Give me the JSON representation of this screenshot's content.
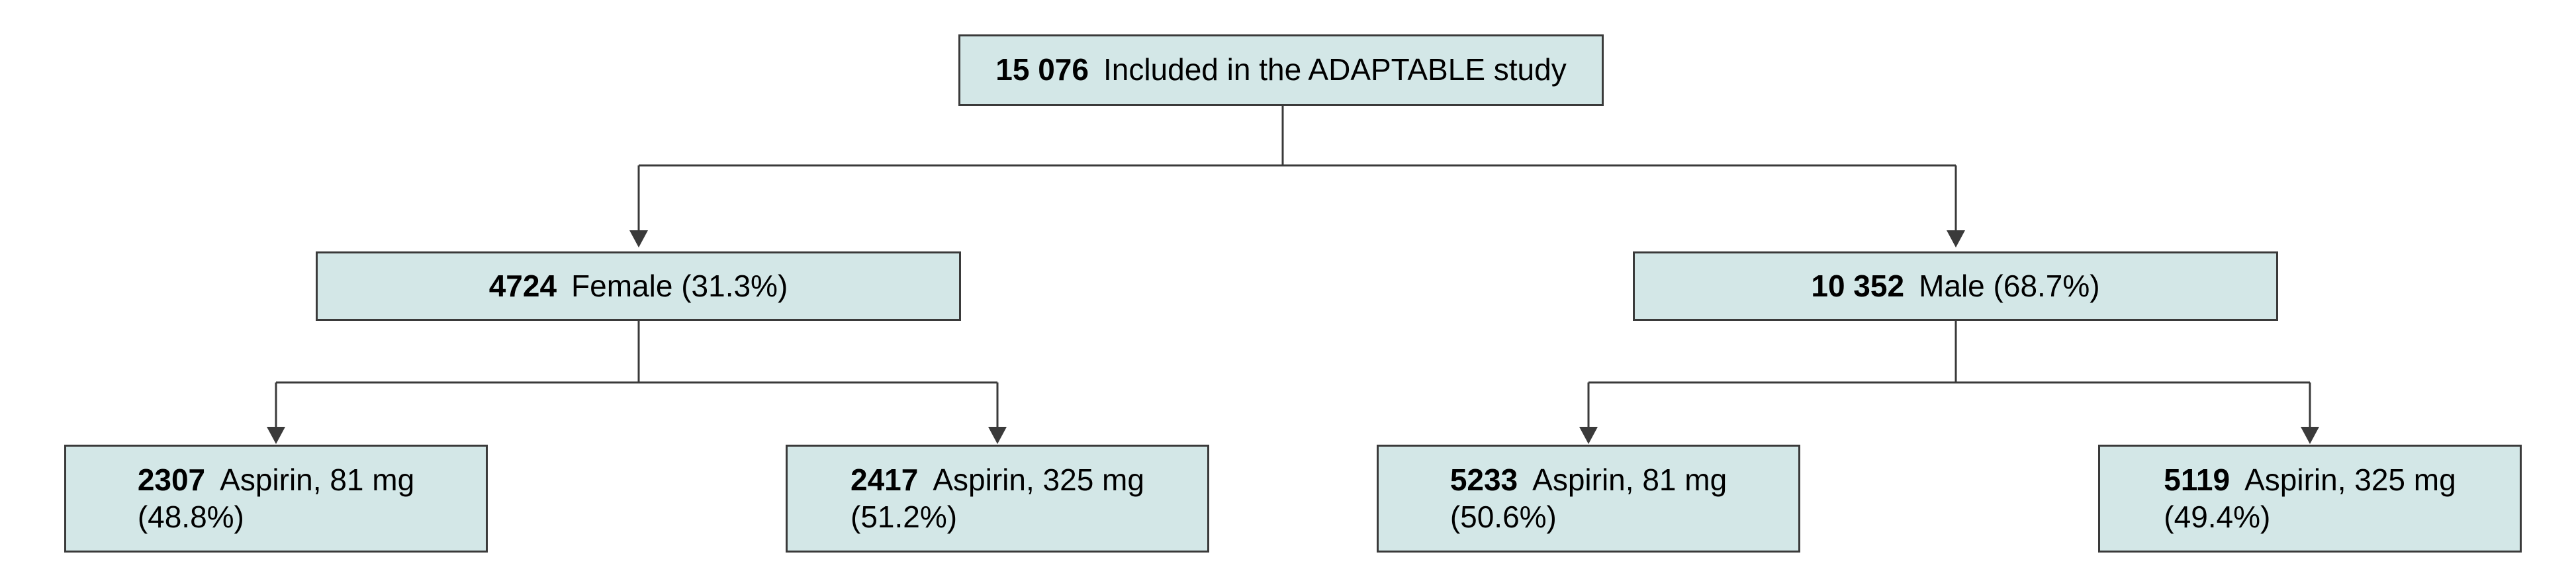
{
  "flowchart": {
    "root": {
      "count": "15 076",
      "label": "Included in the ADAPTABLE study"
    },
    "female": {
      "count": "4724",
      "label": "Female (31.3%)",
      "aspirin_81": {
        "count": "2307",
        "label": "Aspirin, 81 mg",
        "percent": "(48.8%)"
      },
      "aspirin_325": {
        "count": "2417",
        "label": "Aspirin, 325 mg",
        "percent": "(51.2%)"
      }
    },
    "male": {
      "count": "10 352",
      "label": "Male (68.7%)",
      "aspirin_81": {
        "count": "5233",
        "label": "Aspirin, 81 mg",
        "percent": "(50.6%)"
      },
      "aspirin_325": {
        "count": "5119",
        "label": "Aspirin, 325 mg",
        "percent": "(49.4%)"
      }
    },
    "colors": {
      "box_fill": "#d3e7e7",
      "box_border": "#3a3a3a",
      "connector": "#3a3a3a"
    }
  }
}
